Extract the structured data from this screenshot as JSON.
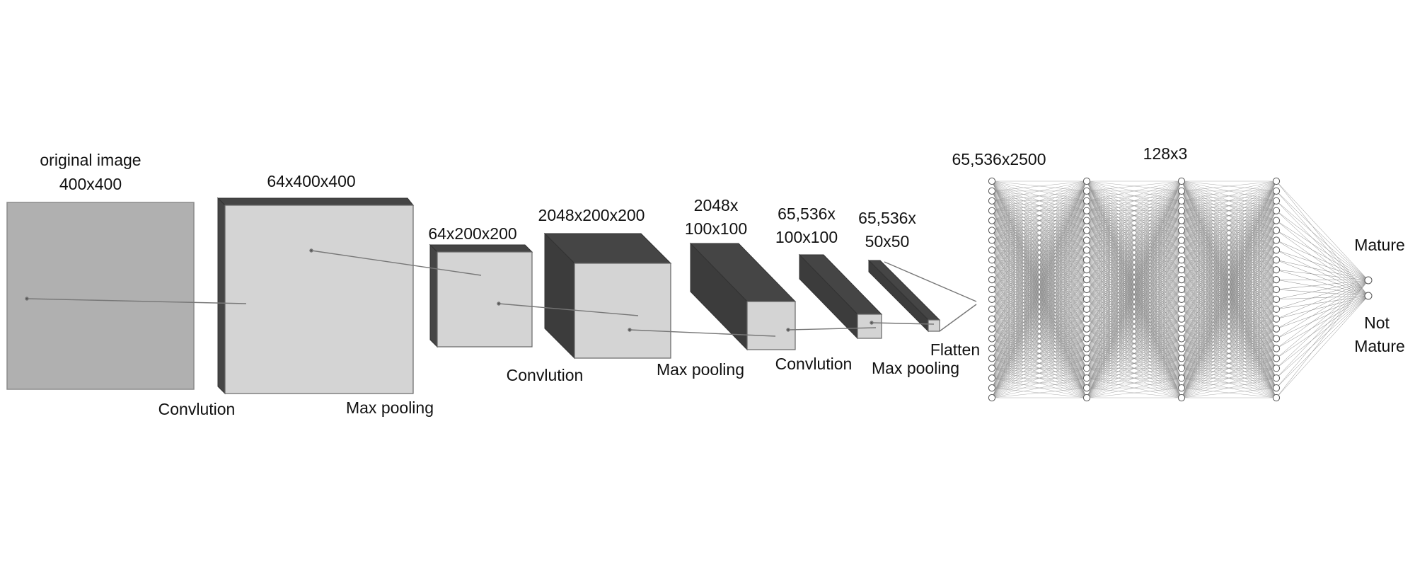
{
  "colors": {
    "block_front": "#d4d4d4",
    "block_side": "#454545",
    "block_top": "#454545",
    "input_image": "#b0b0b0",
    "edge": "#707070",
    "connector": "#777777",
    "neuron_fill": "#ffffff",
    "neuron_stroke": "#555555",
    "dense_edge": "#888888"
  },
  "labels": {
    "input_title": "original image",
    "input_size": "400x400",
    "conv1_size": "64x400x400",
    "conv1_op": "Convlution",
    "pool1_op": "Max pooling",
    "pool1_size": "64x200x200",
    "conv2_size": "2048x200x200",
    "conv2_op": "Convlution",
    "pool2_size_line1": "2048x",
    "pool2_size_line2": "100x100",
    "pool2_op": "Max pooling",
    "conv3_size_line1": "65,536x",
    "conv3_size_line2": "100x100",
    "conv3_op": "Convlution",
    "pool3_size_line1": "65,536x",
    "pool3_size_line2": "50x50",
    "pool3_op": "Max pooling",
    "flatten_op": "Flatten",
    "dense1_size": "65,536x2500",
    "dense2_size": "128x3",
    "output_mature": "Mature",
    "output_not_line1": "Not",
    "output_not_line2": "Mature"
  },
  "network": {
    "hidden_layers": 4,
    "neurons_per_layer": 23,
    "output_neurons": 2
  }
}
